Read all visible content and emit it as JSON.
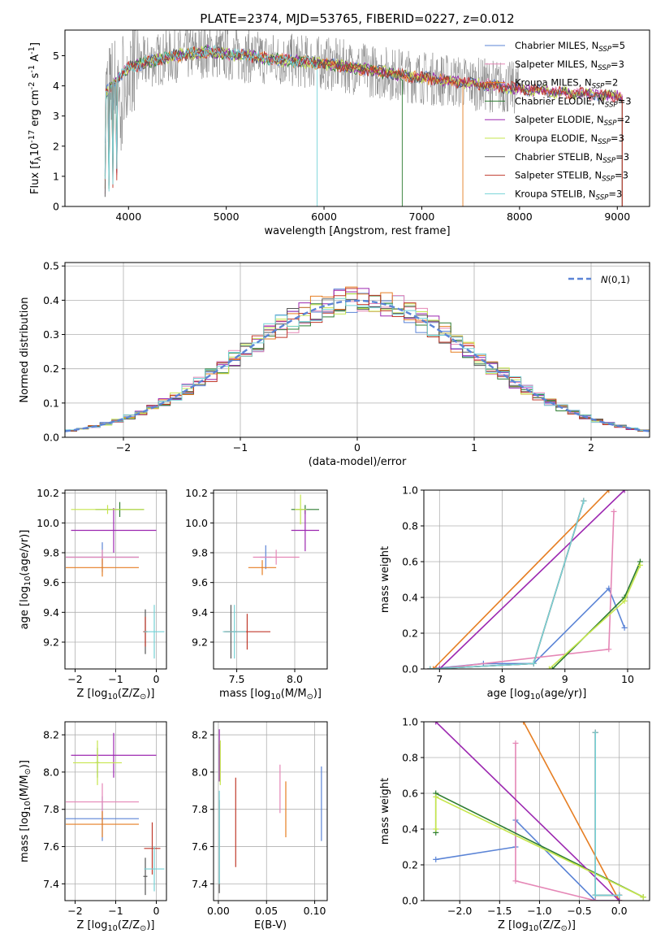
{
  "figure_title": "PLATE=2374, MJD=53765, FIBERID=0227, z=0.012",
  "colors": {
    "Chabrier MILES": "#5b84d6",
    "Salpeter MILES": "#e587b6",
    "Kroupa MILES": "#e67e22",
    "Chabrier ELODIE": "#2e7d32",
    "Salpeter ELODIE": "#9c27b0",
    "Kroupa ELODIE": "#c6e64d",
    "Chabrier STELIB": "#555555",
    "Salpeter STELIB": "#c0392b",
    "Kroupa STELIB": "#74d2d6",
    "data": "#808080"
  },
  "chart_data": [
    {
      "id": "spectrum",
      "type": "line",
      "title": "PLATE=2374, MJD=53765, FIBERID=0227, z=0.012",
      "xlabel": "wavelength [Angstrom, rest frame]",
      "ylabel": "Flux [f$_\\lambda$10$^{-17}$ erg cm$^{-2}$ s$^{-1}$ A$^{-1}$]",
      "xlim": [
        3350,
        9330
      ],
      "ylim": [
        0,
        5.85
      ],
      "xticks": [
        4000,
        5000,
        6000,
        7000,
        8000,
        9000
      ],
      "yticks": [
        0,
        1,
        2,
        3,
        4,
        5
      ],
      "legend_position": "top-right",
      "legend": [
        {
          "label": "Chabrier MILES",
          "nssp": "5"
        },
        {
          "label": "Salpeter MILES",
          "nssp": "3"
        },
        {
          "label": "Kroupa MILES",
          "nssp": "2"
        },
        {
          "label": "Chabrier ELODIE",
          "nssp": "3"
        },
        {
          "label": "Salpeter ELODIE",
          "nssp": "2"
        },
        {
          "label": "Kroupa ELODIE",
          "nssp": "3"
        },
        {
          "label": "Chabrier STELIB",
          "nssp": "3"
        },
        {
          "label": "Salpeter STELIB",
          "nssp": "3"
        },
        {
          "label": "Kroupa STELIB",
          "nssp": "3"
        }
      ],
      "continuum": {
        "x": [
          3760,
          3850,
          4000,
          4200,
          4400,
          4600,
          4800,
          5000,
          5300,
          5600,
          6000,
          6400,
          6800,
          7200,
          7600,
          8000,
          8400,
          8800,
          9050
        ],
        "y": [
          3.7,
          4.1,
          4.6,
          4.8,
          4.95,
          5.05,
          5.15,
          5.05,
          4.95,
          4.85,
          4.75,
          4.55,
          4.35,
          4.2,
          4.05,
          3.9,
          3.78,
          3.7,
          3.65
        ]
      }
    },
    {
      "id": "residuals",
      "type": "line",
      "xlabel": "(data-model)/error",
      "ylabel": "Normed distribution",
      "xlim": [
        -2.5,
        2.5
      ],
      "ylim": [
        0,
        0.51
      ],
      "xticks": [
        -2,
        -1,
        0,
        1,
        2
      ],
      "yticks": [
        0.0,
        0.1,
        0.2,
        0.3,
        0.4,
        0.5
      ],
      "legend_position": "top-right",
      "reference_label": "$\\mathcal{N}(0,1)$"
    },
    {
      "id": "age-vs-Z",
      "type": "scatter",
      "xlabel": "Z [log$_{10}$($Z/Z_\\odot$)]",
      "ylabel": "age  [log$_{10}$($age/yr$)]",
      "xlim": [
        -2.25,
        0.25
      ],
      "ylim": [
        9.02,
        10.22
      ],
      "xticks": [
        -2,
        -1,
        0
      ],
      "yticks": [
        9.2,
        9.4,
        9.6,
        9.8,
        10.0,
        10.2
      ],
      "points": [
        {
          "model": "Chabrier MILES",
          "x": -1.33,
          "y": 9.77,
          "xerr": 0.9,
          "yerr": 0.1
        },
        {
          "model": "Salpeter MILES",
          "x": -1.33,
          "y": 9.77,
          "xerr": 0.9,
          "yerr": 0.05
        },
        {
          "model": "Kroupa MILES",
          "x": -1.33,
          "y": 9.7,
          "xerr": 0.9,
          "yerr": 0.06
        },
        {
          "model": "Chabrier ELODIE",
          "x": -0.9,
          "y": 10.09,
          "xerr": 0.6,
          "yerr": 0.05
        },
        {
          "model": "Salpeter ELODIE",
          "x": -1.05,
          "y": 9.95,
          "xerr": 1.05,
          "yerr": 0.15
        },
        {
          "model": "Kroupa ELODIE",
          "x": -1.2,
          "y": 10.09,
          "xerr": 0.9,
          "yerr": 0.03
        },
        {
          "model": "Chabrier STELIB",
          "x": -0.27,
          "y": 9.27,
          "xerr": 0.05,
          "yerr": 0.15
        },
        {
          "model": "Salpeter STELIB",
          "x": -0.27,
          "y": 9.27,
          "xerr": 0.05,
          "yerr": 0.1
        },
        {
          "model": "Kroupa STELIB",
          "x": -0.05,
          "y": 9.27,
          "xerr": 0.25,
          "yerr": 0.18
        }
      ]
    },
    {
      "id": "age-vs-mass",
      "type": "scatter",
      "xlabel": "mass [log$_{10}$($M/M_\\odot$)]",
      "ylabel": "",
      "xlim": [
        7.3,
        8.28
      ],
      "ylim": [
        9.02,
        10.22
      ],
      "xticks": [
        7.5,
        8.0
      ],
      "yticks": [
        9.2,
        9.4,
        9.6,
        9.8,
        10.0,
        10.2
      ],
      "points": [
        {
          "model": "Chabrier MILES",
          "x": 7.75,
          "y": 9.77,
          "xerr": 0.05,
          "yerr": 0.08
        },
        {
          "model": "Salpeter MILES",
          "x": 7.84,
          "y": 9.77,
          "xerr": 0.2,
          "yerr": 0.05
        },
        {
          "model": "Kroupa MILES",
          "x": 7.72,
          "y": 9.7,
          "xerr": 0.12,
          "yerr": 0.05
        },
        {
          "model": "Chabrier ELODIE",
          "x": 8.09,
          "y": 10.09,
          "xerr": 0.12,
          "yerr": 0.03
        },
        {
          "model": "Salpeter ELODIE",
          "x": 8.09,
          "y": 9.95,
          "xerr": 0.12,
          "yerr": 0.14
        },
        {
          "model": "Kroupa ELODIE",
          "x": 8.05,
          "y": 10.09,
          "xerr": 0.05,
          "yerr": 0.1
        },
        {
          "model": "Chabrier STELIB",
          "x": 7.45,
          "y": 9.27,
          "xerr": 0.05,
          "yerr": 0.18
        },
        {
          "model": "Salpeter STELIB",
          "x": 7.59,
          "y": 9.27,
          "xerr": 0.2,
          "yerr": 0.12
        },
        {
          "model": "Kroupa STELIB",
          "x": 7.48,
          "y": 9.27,
          "xerr": 0.1,
          "yerr": 0.18
        }
      ]
    },
    {
      "id": "weight-vs-age",
      "type": "line",
      "xlabel": "age  [log$_{10}$($age/yr$)]",
      "ylabel": "mass weight",
      "xlim": [
        6.75,
        10.35
      ],
      "ylim": [
        0.0,
        1.0
      ],
      "xticks": [
        7,
        8,
        9,
        10
      ],
      "yticks": [
        0.0,
        0.2,
        0.4,
        0.6,
        0.8,
        1.0
      ],
      "series": [
        {
          "model": "Chabrier MILES",
          "x": [
            6.85,
            7.7,
            8.5,
            9.7,
            9.95
          ],
          "y": [
            0.0,
            0.03,
            0.03,
            0.45,
            0.23
          ]
        },
        {
          "model": "Salpeter MILES",
          "x": [
            6.95,
            9.7,
            9.78
          ],
          "y": [
            0.0,
            0.11,
            0.88
          ]
        },
        {
          "model": "Kroupa MILES",
          "x": [
            6.9,
            9.7
          ],
          "y": [
            0.0,
            1.0
          ]
        },
        {
          "model": "Chabrier ELODIE",
          "x": [
            8.8,
            9.95,
            10.2
          ],
          "y": [
            0.0,
            0.4,
            0.6
          ]
        },
        {
          "model": "Salpeter ELODIE",
          "x": [
            7.0,
            9.95
          ],
          "y": [
            0.0,
            1.0
          ]
        },
        {
          "model": "Kroupa ELODIE",
          "x": [
            8.75,
            9.95,
            10.2
          ],
          "y": [
            0.0,
            0.38,
            0.58
          ]
        },
        {
          "model": "Chabrier STELIB",
          "x": [
            6.85,
            8.5,
            9.3
          ],
          "y": [
            0.0,
            0.03,
            0.94
          ]
        },
        {
          "model": "Salpeter STELIB",
          "x": [
            6.85,
            8.5,
            9.3
          ],
          "y": [
            0.0,
            0.03,
            0.94
          ]
        },
        {
          "model": "Kroupa STELIB",
          "x": [
            6.85,
            8.5,
            9.3
          ],
          "y": [
            0.0,
            0.03,
            0.94
          ]
        }
      ]
    },
    {
      "id": "mass-vs-Z",
      "type": "scatter",
      "xlabel": "Z [log$_{10}$($Z/Z_\\odot$)]",
      "ylabel": "mass [log$_{10}$($M/M_\\odot$)]",
      "xlim": [
        -2.25,
        0.25
      ],
      "ylim": [
        7.31,
        8.27
      ],
      "xticks": [
        -2,
        -1,
        0
      ],
      "yticks": [
        7.4,
        7.6,
        7.8,
        8.0,
        8.2
      ],
      "points": [
        {
          "model": "Chabrier MILES",
          "x": -1.33,
          "y": 7.75,
          "xerr": 0.9,
          "yerr": 0.12
        },
        {
          "model": "Salpeter MILES",
          "x": -1.33,
          "y": 7.84,
          "xerr": 0.9,
          "yerr": 0.1
        },
        {
          "model": "Kroupa MILES",
          "x": -1.33,
          "y": 7.72,
          "xerr": 0.9,
          "yerr": 0.07
        },
        {
          "model": "Chabrier ELODIE",
          "x": -1.45,
          "y": 8.05,
          "xerr": 0.05,
          "yerr": 0.08
        },
        {
          "model": "Salpeter ELODIE",
          "x": -1.05,
          "y": 8.09,
          "xerr": 1.05,
          "yerr": 0.12
        },
        {
          "model": "Kroupa ELODIE",
          "x": -1.45,
          "y": 8.05,
          "xerr": 0.6,
          "yerr": 0.12
        },
        {
          "model": "Chabrier STELIB",
          "x": -0.27,
          "y": 7.44,
          "xerr": 0.05,
          "yerr": 0.1
        },
        {
          "model": "Salpeter STELIB",
          "x": -0.1,
          "y": 7.59,
          "xerr": 0.2,
          "yerr": 0.14
        },
        {
          "model": "Kroupa STELIB",
          "x": -0.05,
          "y": 7.48,
          "xerr": 0.25,
          "yerr": 0.12
        }
      ]
    },
    {
      "id": "mass-vs-EBV",
      "type": "scatter",
      "xlabel": "E(B-V)",
      "ylabel": "",
      "xlim": [
        -0.005,
        0.113
      ],
      "ylim": [
        7.31,
        8.27
      ],
      "xticks": [
        0.0,
        0.05,
        0.1
      ],
      "yticks": [
        7.4,
        7.6,
        7.8,
        8.0,
        8.2
      ],
      "points": [
        {
          "model": "Chabrier MILES",
          "x": 0.107,
          "y": 7.83,
          "yerr": 0.2
        },
        {
          "model": "Salpeter MILES",
          "x": 0.064,
          "y": 7.91,
          "yerr": 0.13
        },
        {
          "model": "Kroupa MILES",
          "x": 0.07,
          "y": 7.8,
          "yerr": 0.15
        },
        {
          "model": "Chabrier ELODIE",
          "x": 0.001,
          "y": 8.05,
          "yerr": 0.1
        },
        {
          "model": "Salpeter ELODIE",
          "x": 0.001,
          "y": 8.09,
          "yerr": 0.14
        },
        {
          "model": "Kroupa ELODIE",
          "x": 0.002,
          "y": 8.05,
          "yerr": 0.12
        },
        {
          "model": "Chabrier STELIB",
          "x": 0.001,
          "y": 7.6,
          "yerr": 0.25
        },
        {
          "model": "Salpeter STELIB",
          "x": 0.018,
          "y": 7.73,
          "yerr": 0.24
        },
        {
          "model": "Kroupa STELIB",
          "x": 0.001,
          "y": 7.65,
          "yerr": 0.25
        }
      ]
    },
    {
      "id": "weight-vs-Z",
      "type": "line",
      "xlabel": "Z [log$_{10}$($Z/Z_\\odot$)]",
      "ylabel": "mass weight",
      "xlim": [
        -2.45,
        0.38
      ],
      "ylim": [
        0.0,
        1.0
      ],
      "xticks": [
        -2.0,
        -1.5,
        -1.0,
        -0.5,
        0.0
      ],
      "yticks": [
        0.0,
        0.2,
        0.4,
        0.6,
        0.8,
        1.0
      ],
      "series": [
        {
          "model": "Chabrier MILES",
          "x": [
            -2.3,
            -1.3,
            -1.3,
            -0.3,
            0.0
          ],
          "y": [
            0.23,
            0.3,
            0.45,
            0.0,
            0.0
          ]
        },
        {
          "model": "Salpeter MILES",
          "x": [
            -1.3,
            -1.3,
            -0.3,
            0.0
          ],
          "y": [
            0.88,
            0.11,
            0.0,
            0.0
          ]
        },
        {
          "model": "Kroupa MILES",
          "x": [
            -1.2,
            0.0
          ],
          "y": [
            1.0,
            0.0
          ]
        },
        {
          "model": "Chabrier ELODIE",
          "x": [
            -2.3,
            -2.3,
            0.3
          ],
          "y": [
            0.38,
            0.6,
            0.02
          ]
        },
        {
          "model": "Salpeter ELODIE",
          "x": [
            -2.3,
            0.0
          ],
          "y": [
            1.0,
            0.0
          ]
        },
        {
          "model": "Kroupa ELODIE",
          "x": [
            -2.3,
            -2.3,
            0.3
          ],
          "y": [
            0.4,
            0.58,
            0.02
          ]
        },
        {
          "model": "Chabrier STELIB",
          "x": [
            -0.3,
            -0.3,
            0.0
          ],
          "y": [
            0.94,
            0.03,
            0.03
          ]
        },
        {
          "model": "Salpeter STELIB",
          "x": [
            -0.3,
            -0.3,
            0.0
          ],
          "y": [
            0.94,
            0.03,
            0.03
          ]
        },
        {
          "model": "Kroupa STELIB",
          "x": [
            -0.3,
            -0.3,
            0.0
          ],
          "y": [
            0.94,
            0.03,
            0.03
          ]
        }
      ]
    }
  ]
}
